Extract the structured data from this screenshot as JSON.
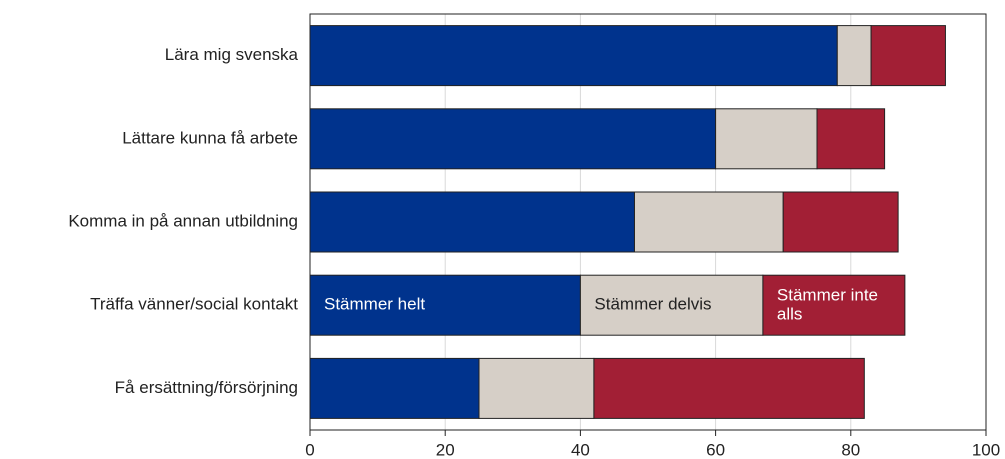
{
  "chart_data": {
    "type": "stacked-barh",
    "categories": [
      "Lära mig svenska",
      "Lättare kunna få arbete",
      "Komma in på annan utbildning",
      "Träffa vänner/social kontakt",
      "Få ersättning/försörjning"
    ],
    "series": [
      {
        "name": "Stämmer helt",
        "color": "#00338d",
        "values": [
          78,
          60,
          48,
          40,
          25
        ]
      },
      {
        "name": "Stämmer delvis",
        "color": "#d6cfc7",
        "values": [
          5,
          15,
          22,
          27,
          17
        ]
      },
      {
        "name": "Stämmer inte alls",
        "color": "#a21f35",
        "values": [
          11,
          10,
          17,
          21,
          40
        ]
      }
    ],
    "xlim": [
      0,
      100
    ],
    "xticks": [
      0,
      20,
      40,
      60,
      80,
      100
    ],
    "grid": true
  }
}
